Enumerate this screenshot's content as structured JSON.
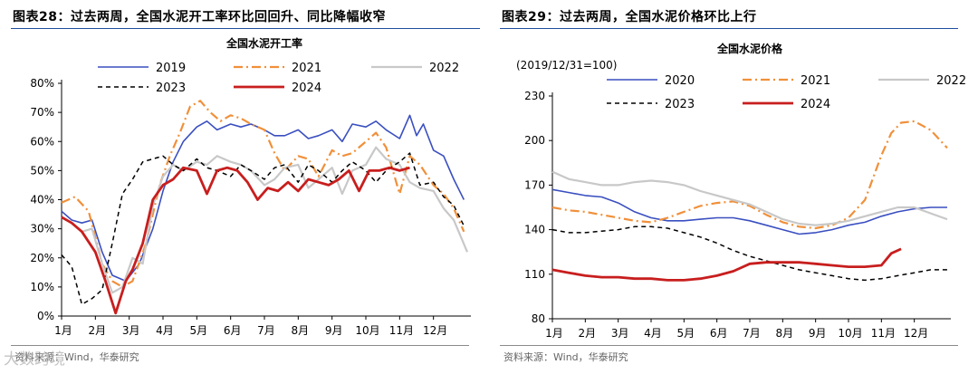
{
  "charts": [
    {
      "figure_title": "图表28：过去两周，全国水泥开工率环比回回升、同比降幅收窄",
      "source": "资料来源：Wind，华泰研究"
    },
    {
      "figure_title": "图表29：过去两周，全国水泥价格环比上行",
      "source": "资料来源：Wind，华泰研究"
    }
  ],
  "watermark": "大数跨境",
  "colors": {
    "s2019": "#3a4fc0",
    "s2020": "#3a4fc0",
    "s2021": "#f0903a",
    "s2022": "#c8c8c8",
    "s2023": "#000000",
    "s2024": "#c81e1e",
    "rule": "#1f4e9e",
    "axis": "#000000"
  },
  "chart_data": [
    {
      "type": "line",
      "title": "全国水泥开工率",
      "xlabel": "",
      "ylabel": "",
      "ylim": [
        0,
        80
      ],
      "yticks": [
        "0%",
        "10%",
        "20%",
        "30%",
        "40%",
        "50%",
        "60%",
        "70%",
        "80%"
      ],
      "xticks": [
        "1月",
        "2月",
        "3月",
        "4月",
        "5月",
        "6月",
        "7月",
        "8月",
        "9月",
        "10月",
        "11月",
        "12月"
      ],
      "legend_rows": [
        [
          "2019",
          "2021",
          "2022"
        ],
        [
          "2023",
          "2024"
        ]
      ],
      "series": [
        {
          "name": "2019",
          "style": "solid",
          "color_key": "s2019",
          "x": [
            0,
            0.3,
            0.6,
            0.9,
            1.2,
            1.5,
            1.9,
            2.3,
            2.7,
            3.0,
            3.3,
            3.6,
            4.0,
            4.3,
            4.6,
            5.0,
            5.3,
            5.6,
            6.0,
            6.3,
            6.6,
            7.0,
            7.3,
            7.6,
            8.0,
            8.3,
            8.6,
            9.0,
            9.3,
            9.6,
            10.0,
            10.3,
            10.5,
            10.7,
            11.0,
            11.3,
            11.6,
            11.9
          ],
          "values": [
            36,
            33,
            32,
            33,
            22,
            14,
            12,
            18,
            30,
            43,
            53,
            60,
            65,
            67,
            64,
            66,
            65,
            66,
            64,
            62,
            62,
            64,
            61,
            62,
            64,
            60,
            66,
            65,
            67,
            64,
            61,
            69,
            62,
            66,
            57,
            55,
            47,
            40
          ]
        },
        {
          "name": "2021",
          "style": "dashdot",
          "color_key": "s2021",
          "x": [
            0,
            0.4,
            0.8,
            1.2,
            1.5,
            1.8,
            2.1,
            2.5,
            2.9,
            3.2,
            3.5,
            3.8,
            4.1,
            4.4,
            4.7,
            5.0,
            5.3,
            5.6,
            6.0,
            6.3,
            6.6,
            7.0,
            7.3,
            7.6,
            8.0,
            8.3,
            8.6,
            9.0,
            9.3,
            9.6,
            10.0,
            10.3,
            10.6,
            11.0,
            11.3,
            11.6,
            11.9
          ],
          "values": [
            39,
            41,
            36,
            18,
            12,
            10,
            12,
            25,
            45,
            55,
            63,
            72,
            74,
            70,
            67,
            69,
            68,
            66,
            64,
            56,
            50,
            55,
            54,
            48,
            57,
            55,
            56,
            60,
            63,
            58,
            42,
            55,
            52,
            45,
            42,
            37,
            29
          ]
        },
        {
          "name": "2022",
          "style": "solid",
          "color_key": "s2022",
          "x": [
            0,
            0.3,
            0.6,
            0.9,
            1.2,
            1.5,
            1.8,
            2.1,
            2.4,
            2.7,
            3.0,
            3.3,
            3.6,
            4.0,
            4.3,
            4.6,
            5.0,
            5.3,
            5.6,
            6.0,
            6.3,
            6.6,
            7.0,
            7.3,
            7.6,
            8.0,
            8.3,
            8.6,
            9.0,
            9.3,
            9.6,
            10.0,
            10.3,
            10.6,
            11.0,
            11.3,
            11.6,
            12.0
          ],
          "values": [
            34,
            32,
            29,
            30,
            18,
            8,
            10,
            20,
            18,
            38,
            48,
            52,
            50,
            53,
            52,
            55,
            53,
            52,
            50,
            45,
            47,
            51,
            52,
            44,
            47,
            51,
            42,
            50,
            52,
            58,
            54,
            52,
            46,
            44,
            43,
            37,
            33,
            22
          ]
        },
        {
          "name": "2023",
          "style": "dashed",
          "color_key": "s2023",
          "x": [
            0,
            0.3,
            0.6,
            0.9,
            1.2,
            1.5,
            1.8,
            2.1,
            2.4,
            2.7,
            3.0,
            3.3,
            3.6,
            4.0,
            4.3,
            4.6,
            5.0,
            5.3,
            5.6,
            6.0,
            6.3,
            6.6,
            7.0,
            7.3,
            7.6,
            8.0,
            8.3,
            8.6,
            9.0,
            9.3,
            9.6,
            10.0,
            10.3,
            10.6,
            11.0,
            11.3,
            11.6,
            11.9
          ],
          "values": [
            21,
            17,
            4,
            6,
            9,
            25,
            42,
            47,
            53,
            54,
            55,
            52,
            50,
            54,
            51,
            50,
            48,
            52,
            50,
            47,
            51,
            52,
            46,
            52,
            50,
            46,
            50,
            53,
            50,
            46,
            50,
            53,
            56,
            45,
            46,
            41,
            38,
            31
          ]
        },
        {
          "name": "2024",
          "style": "solid-thick",
          "color_key": "s2024",
          "x": [
            0,
            0.3,
            0.6,
            1.0,
            1.3,
            1.6,
            1.9,
            2.1,
            2.4,
            2.7,
            3.0,
            3.3,
            3.6,
            4.0,
            4.3,
            4.6,
            4.9,
            5.2,
            5.5,
            5.8,
            6.1,
            6.4,
            6.7,
            7.0,
            7.3,
            7.6,
            7.9,
            8.2,
            8.5,
            8.8,
            9.1,
            9.4,
            9.7,
            10.0,
            10.3
          ],
          "values": [
            34,
            32,
            29,
            22,
            12,
            1,
            12,
            16,
            25,
            40,
            45,
            47,
            51,
            50,
            42,
            50,
            51,
            50,
            46,
            40,
            44,
            43,
            46,
            43,
            47,
            46,
            45,
            47,
            50,
            43,
            50,
            50,
            51,
            50,
            51
          ]
        }
      ]
    },
    {
      "type": "line",
      "title": "全国水泥价格",
      "ylabel": "(2019/12/31=100)",
      "xlabel": "",
      "ylim": [
        80,
        230
      ],
      "yticks": [
        "80",
        "110",
        "140",
        "170",
        "200",
        "230"
      ],
      "xticks": [
        "1月",
        "2月",
        "3月",
        "4月",
        "5月",
        "6月",
        "7月",
        "8月",
        "9月",
        "10月",
        "11月",
        "12月"
      ],
      "legend_rows": [
        [
          "2020",
          "2021",
          "2022"
        ],
        [
          "2023",
          "2024"
        ]
      ],
      "series": [
        {
          "name": "2020",
          "style": "solid",
          "color_key": "s2020",
          "x": [
            0,
            0.5,
            1.0,
            1.5,
            2.0,
            2.5,
            3.0,
            3.5,
            4.0,
            4.5,
            5.0,
            5.5,
            6.0,
            6.5,
            7.0,
            7.5,
            8.0,
            8.5,
            9.0,
            9.5,
            10.0,
            10.5,
            11.0,
            11.5,
            12.0
          ],
          "values": [
            167,
            165,
            163,
            162,
            158,
            152,
            148,
            146,
            146,
            147,
            148,
            148,
            146,
            143,
            140,
            137,
            138,
            140,
            143,
            145,
            149,
            152,
            154,
            155,
            155
          ]
        },
        {
          "name": "2021",
          "style": "dashdot",
          "color_key": "s2021",
          "x": [
            0,
            0.5,
            1.0,
            1.5,
            2.0,
            2.5,
            3.0,
            3.5,
            4.0,
            4.5,
            5.0,
            5.5,
            6.0,
            6.5,
            7.0,
            7.5,
            8.0,
            8.5,
            9.0,
            9.5,
            10.0,
            10.3,
            10.6,
            11.0,
            11.5,
            12.0
          ],
          "values": [
            155,
            153,
            152,
            150,
            148,
            146,
            145,
            148,
            152,
            156,
            158,
            159,
            156,
            150,
            145,
            142,
            141,
            143,
            148,
            160,
            190,
            205,
            212,
            213,
            207,
            195
          ]
        },
        {
          "name": "2022",
          "style": "solid",
          "color_key": "s2022",
          "x": [
            0,
            0.5,
            1.0,
            1.5,
            2.0,
            2.5,
            3.0,
            3.5,
            4.0,
            4.5,
            5.0,
            5.5,
            6.0,
            6.5,
            7.0,
            7.5,
            8.0,
            8.5,
            9.0,
            9.5,
            10.0,
            10.5,
            11.0,
            11.5,
            12.0
          ],
          "values": [
            179,
            174,
            172,
            170,
            170,
            172,
            173,
            172,
            170,
            166,
            163,
            160,
            157,
            152,
            147,
            144,
            143,
            144,
            146,
            149,
            152,
            155,
            155,
            151,
            147
          ]
        },
        {
          "name": "2023",
          "style": "dashed",
          "color_key": "s2023",
          "x": [
            0,
            0.5,
            1.0,
            1.5,
            2.0,
            2.5,
            3.0,
            3.5,
            4.0,
            4.5,
            5.0,
            5.5,
            6.0,
            6.5,
            7.0,
            7.5,
            8.0,
            8.5,
            9.0,
            9.5,
            10.0,
            10.5,
            11.0,
            11.5,
            12.0
          ],
          "values": [
            140,
            138,
            138,
            139,
            140,
            142,
            142,
            141,
            138,
            135,
            131,
            126,
            122,
            119,
            116,
            113,
            111,
            109,
            107,
            106,
            107,
            109,
            111,
            113,
            113
          ]
        },
        {
          "name": "2024",
          "style": "solid-thick",
          "color_key": "s2024",
          "x": [
            0,
            0.5,
            1.0,
            1.5,
            2.0,
            2.5,
            3.0,
            3.5,
            4.0,
            4.5,
            5.0,
            5.5,
            6.0,
            6.5,
            7.0,
            7.5,
            8.0,
            8.5,
            9.0,
            9.5,
            10.0,
            10.3,
            10.6
          ],
          "values": [
            113,
            111,
            109,
            108,
            108,
            107,
            107,
            106,
            106,
            107,
            109,
            112,
            117,
            118,
            118,
            118,
            117,
            116,
            115,
            115,
            116,
            124,
            127
          ]
        }
      ]
    }
  ]
}
